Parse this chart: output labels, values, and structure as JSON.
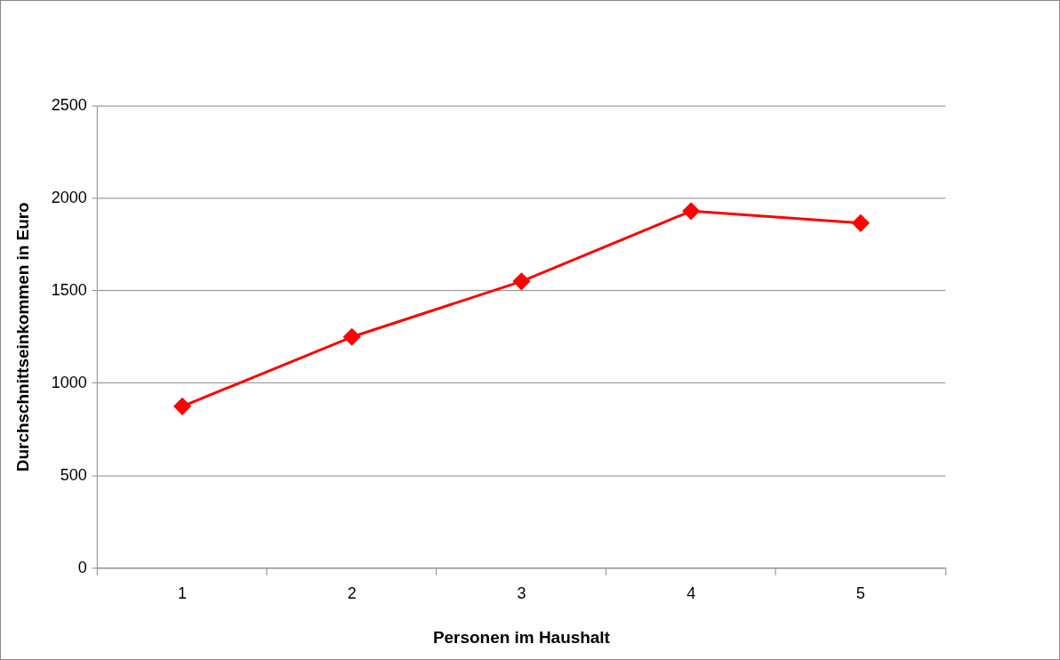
{
  "chart_data": {
    "type": "line",
    "xlabel": "Personen im Haushalt",
    "ylabel": "Durchschnittseinkommen in Euro",
    "categories": [
      "1",
      "2",
      "3",
      "4",
      "5"
    ],
    "series": [
      {
        "color": "#ff0000",
        "values": [
          875,
          1250,
          1550,
          1930,
          1865
        ]
      }
    ],
    "ylim": [
      0,
      2500
    ],
    "yticks": [
      0,
      500,
      1000,
      1500,
      2000,
      2500
    ],
    "grid": "y",
    "marker": "diamond",
    "line_style": "solid",
    "legend": false
  }
}
